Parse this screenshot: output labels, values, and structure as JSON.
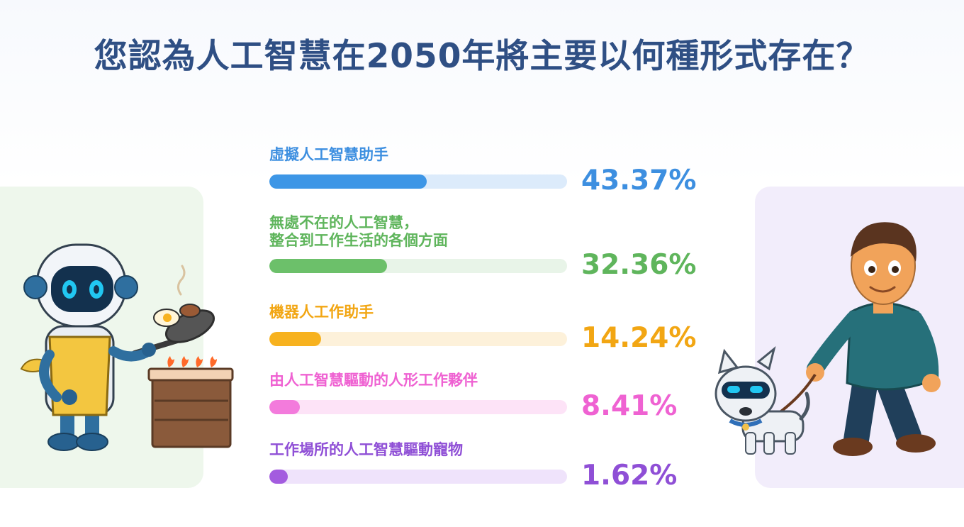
{
  "title": "您認為人工智慧在2050年將主要以何種形式存在？",
  "chart_data": {
    "type": "bar",
    "orientation": "horizontal",
    "title": "您認為人工智慧在2050年將主要以何種形式存在？",
    "unit": "%",
    "xlim": [
      0,
      100
    ],
    "categories": [
      "虛擬人工智慧助手",
      "無處不在的人工智慧，\n整合到工作生活的各個方面",
      "機器人工作助手",
      "由人工智慧驅動的人形工作夥伴",
      "工作場所的人工智慧驅動寵物"
    ],
    "values": [
      43.37,
      32.36,
      14.24,
      8.41,
      1.62
    ],
    "value_labels": [
      "43.37%",
      "32.36%",
      "14.24%",
      "8.41%",
      "1.62%"
    ],
    "colors": {
      "fill": [
        "#3d96e6",
        "#6cc06a",
        "#f7b21f",
        "#f37bdc",
        "#a35cdf"
      ],
      "track": [
        "#dcebfb",
        "#e8f4e8",
        "#fdf1da",
        "#fde3f7",
        "#efe3fb"
      ],
      "label": [
        "#3d8fe0",
        "#5fb55c",
        "#f2a613",
        "#ef62d2",
        "#8f4fd6"
      ]
    },
    "grid": false,
    "legend": "none"
  },
  "illustrations": {
    "left": "robot-cooking-icon",
    "right": "man-walking-robot-dog-icon"
  }
}
